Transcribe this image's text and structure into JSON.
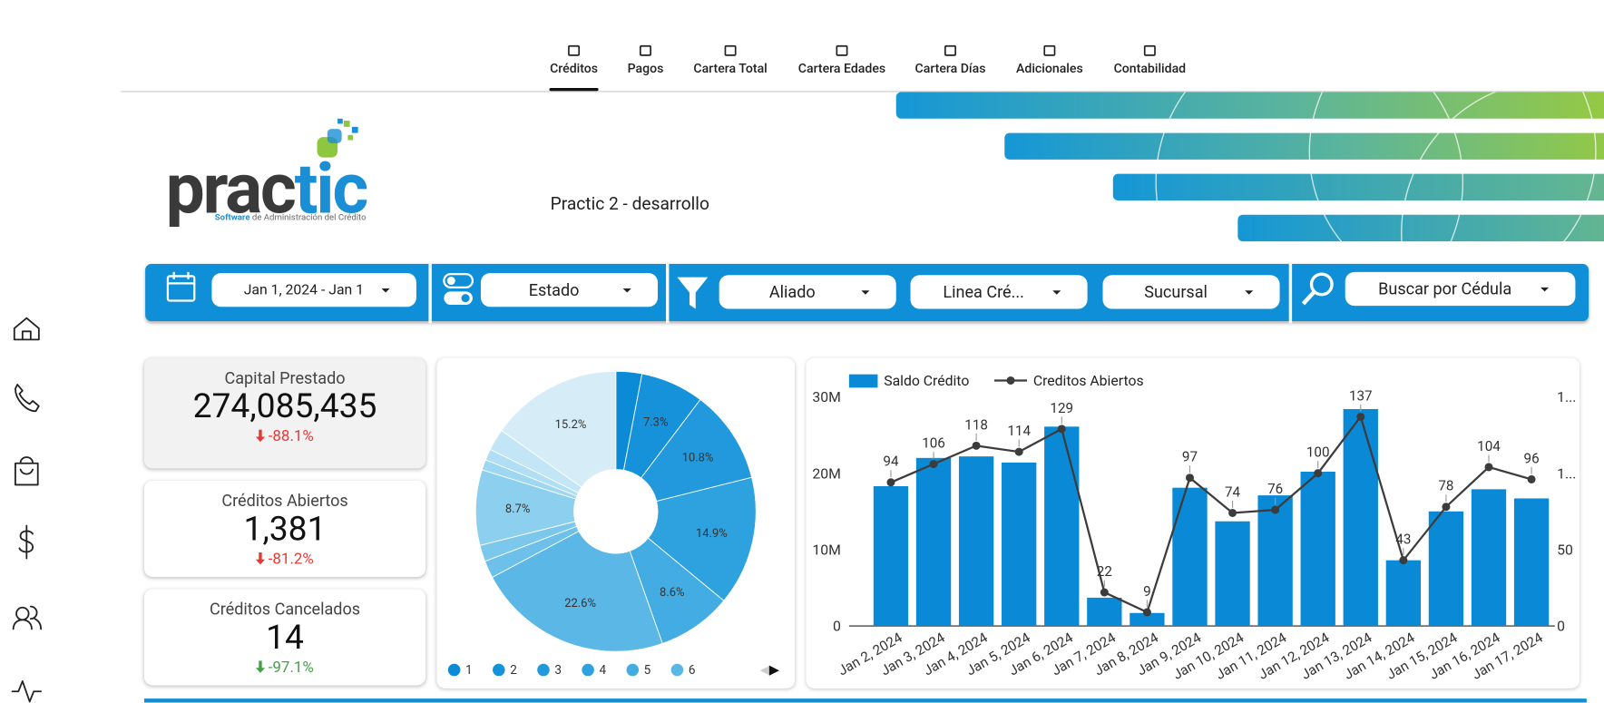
{
  "nav": {
    "tabs": [
      "Créditos",
      "Pagos",
      "Cartera Total",
      "Cartera Edades",
      "Cartera Días",
      "Adicionales",
      "Contabilidad"
    ],
    "active": 0
  },
  "header": {
    "logo_parts": [
      "prac",
      "tic"
    ],
    "logo_tagline": [
      "Software",
      "de Administración del Crédito"
    ],
    "subtitle": "Practic 2 - desarrollo"
  },
  "filters": [
    "Jan 1, 2024 - Jan 1",
    "Estado",
    "Aliado",
    "Linea Cré...",
    "Sucursal",
    "Buscar por Cédula"
  ],
  "kpis": [
    {
      "label": "Capital Prestado",
      "value": "274,085,435",
      "change": "-88.1%",
      "change_color": "#e53935"
    },
    {
      "label": "Créditos Abiertos",
      "value": "1,381",
      "change": "-81.2%",
      "change_color": "#e53935"
    },
    {
      "label": "Créditos Cancelados",
      "value": "14",
      "change": "-97.1%",
      "change_color": "#43a047"
    }
  ],
  "chart_data": [
    {
      "type": "pie",
      "donut": true,
      "categories": [
        "1",
        "2",
        "3",
        "4",
        "5",
        "6",
        null,
        null,
        null,
        null,
        null,
        null,
        null
      ],
      "values": [
        3.0,
        7.3,
        10.8,
        14.9,
        8.6,
        22.6,
        2.0,
        1.9,
        8.7,
        1.2,
        1.3,
        2.5,
        15.2
      ],
      "value_labels": [
        null,
        "7.3%",
        "10.8%",
        "14.9%",
        "8.6%",
        "22.6%",
        null,
        null,
        "8.7%",
        null,
        null,
        null,
        "15.2%"
      ],
      "colors": [
        "#0b8ad5",
        "#1592d9",
        "#2199dc",
        "#2ea1df",
        "#42ace3",
        "#5ab7e6",
        "#6cc0ea",
        "#7cc7ec",
        "#8ccfef",
        "#9ed7f1",
        "#b0def4",
        "#c2e6f6",
        "#d6edf8"
      ]
    },
    {
      "type": "bar_line",
      "categories": [
        "Jan 2, 2024",
        "Jan 3, 2024",
        "Jan 4, 2024",
        "Jan 5, 2024",
        "Jan 6, 2024",
        "Jan 7, 2024",
        "Jan 8, 2024",
        "Jan 9, 2024",
        "Jan 10, 2024",
        "Jan 11, 2024",
        "Jan 12, 2024",
        "Jan 13, 2024",
        "Jan 14, 2024",
        "Jan 15, 2024",
        "Jan 16, 2024",
        "Jan 17, 2024"
      ],
      "series": [
        {
          "name": "Saldo Crédito",
          "type": "bar",
          "color": "#0a8ad6",
          "values": [
            18300000,
            22000000,
            22200000,
            21400000,
            26100000,
            3700000,
            1700000,
            18100000,
            13700000,
            17100000,
            20200000,
            28400000,
            8600000,
            15000000,
            17900000,
            16700000
          ]
        },
        {
          "name": "Creditos Abiertos",
          "type": "line",
          "axis": "y2",
          "color": "#3c3c3c",
          "values": [
            94,
            106,
            118,
            114,
            129,
            22,
            9,
            97,
            74,
            76,
            100,
            137,
            43,
            78,
            104,
            96
          ]
        }
      ],
      "ylim": [
        0,
        30000000
      ],
      "yticks": [
        0,
        {
          "value": 10000000,
          "label": "10M"
        },
        {
          "value": 20000000,
          "label": "20M"
        },
        {
          "value": 30000000,
          "label": "30M"
        }
      ],
      "y2lim": [
        0,
        150
      ],
      "y2ticks": [
        0,
        50,
        {
          "value": 100,
          "label": "1..."
        },
        {
          "value": 150,
          "label": "1..."
        }
      ]
    }
  ]
}
